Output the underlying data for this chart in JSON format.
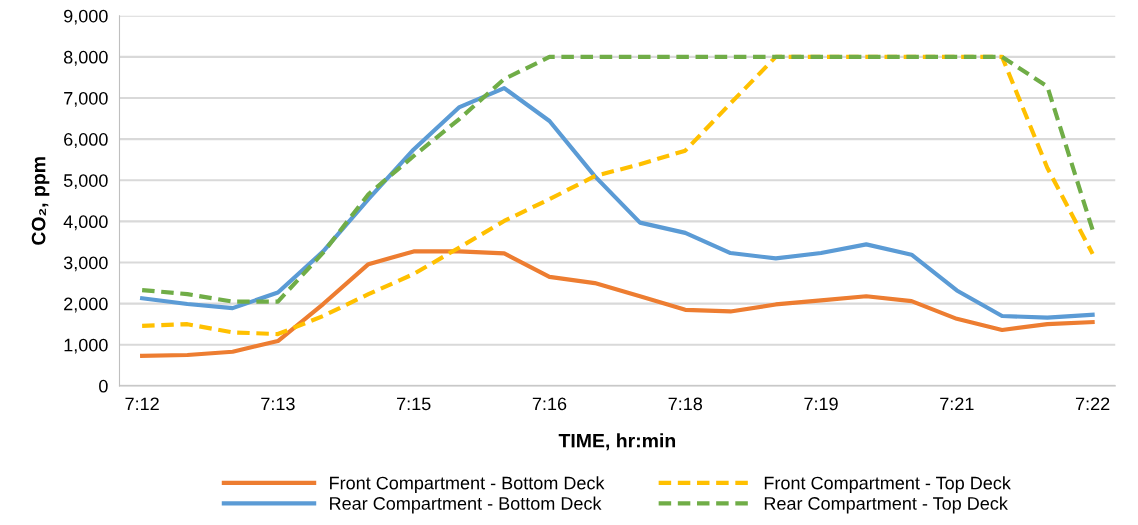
{
  "chart_data": {
    "type": "line",
    "xlabel": "TIME, hr:min",
    "ylabel": "CO₂, ppm",
    "categories": [
      "7:12",
      null,
      null,
      "7:13",
      null,
      null,
      "7:15",
      null,
      null,
      "7:16",
      null,
      null,
      "7:18",
      null,
      null,
      "7:19",
      null,
      null,
      "7:21",
      null,
      null,
      "7:22"
    ],
    "series": [
      {
        "name": "Front Compartment - Bottom Deck",
        "color": "#ed7d31",
        "line_style": "solid",
        "values": [
          730,
          750,
          830,
          1090,
          1990,
          2960,
          3270,
          3270,
          3220,
          2650,
          2500,
          2180,
          1850,
          1810,
          1980,
          2080,
          2180,
          2060,
          1630,
          1360,
          1500,
          1550
        ]
      },
      {
        "name": "Rear Compartment - Bottom Deck",
        "color": "#5b9bd5",
        "line_style": "solid",
        "values": [
          2130,
          1990,
          1890,
          2270,
          3270,
          4540,
          5750,
          6770,
          7240,
          6440,
          5100,
          3970,
          3720,
          3230,
          3100,
          3230,
          3440,
          3190,
          2320,
          1700,
          1660,
          1730
        ]
      },
      {
        "name": "Front Compartment - Top Deck",
        "color": "#ffc000",
        "line_style": "dashed",
        "values": [
          1460,
          1500,
          1300,
          1260,
          1700,
          2230,
          2720,
          3360,
          4010,
          4540,
          5100,
          5390,
          5720,
          6870,
          8000,
          8000,
          8000,
          8000,
          8000,
          8000,
          5300,
          3210
        ]
      },
      {
        "name": "Rear Compartment - Top Deck",
        "color": "#70ad47",
        "line_style": "dashed",
        "values": [
          2330,
          2230,
          2050,
          2050,
          3240,
          4660,
          5590,
          6480,
          7460,
          8000,
          8000,
          8000,
          8000,
          8000,
          8000,
          8000,
          8000,
          8000,
          8000,
          8000,
          7280,
          3790
        ]
      }
    ],
    "ylim": [
      0,
      9000
    ],
    "yticks": [
      {
        "value": 0,
        "label": "0"
      },
      {
        "value": 1000,
        "label": "1,000"
      },
      {
        "value": 2000,
        "label": "2,000"
      },
      {
        "value": 3000,
        "label": "3,000"
      },
      {
        "value": 4000,
        "label": "4,000"
      },
      {
        "value": 5000,
        "label": "5,000"
      },
      {
        "value": 6000,
        "label": "6,000"
      },
      {
        "value": 7000,
        "label": "7,000"
      },
      {
        "value": 8000,
        "label": "8,000"
      },
      {
        "value": 9000,
        "label": "9,000"
      }
    ],
    "grid": "y",
    "legend": "bottom"
  }
}
